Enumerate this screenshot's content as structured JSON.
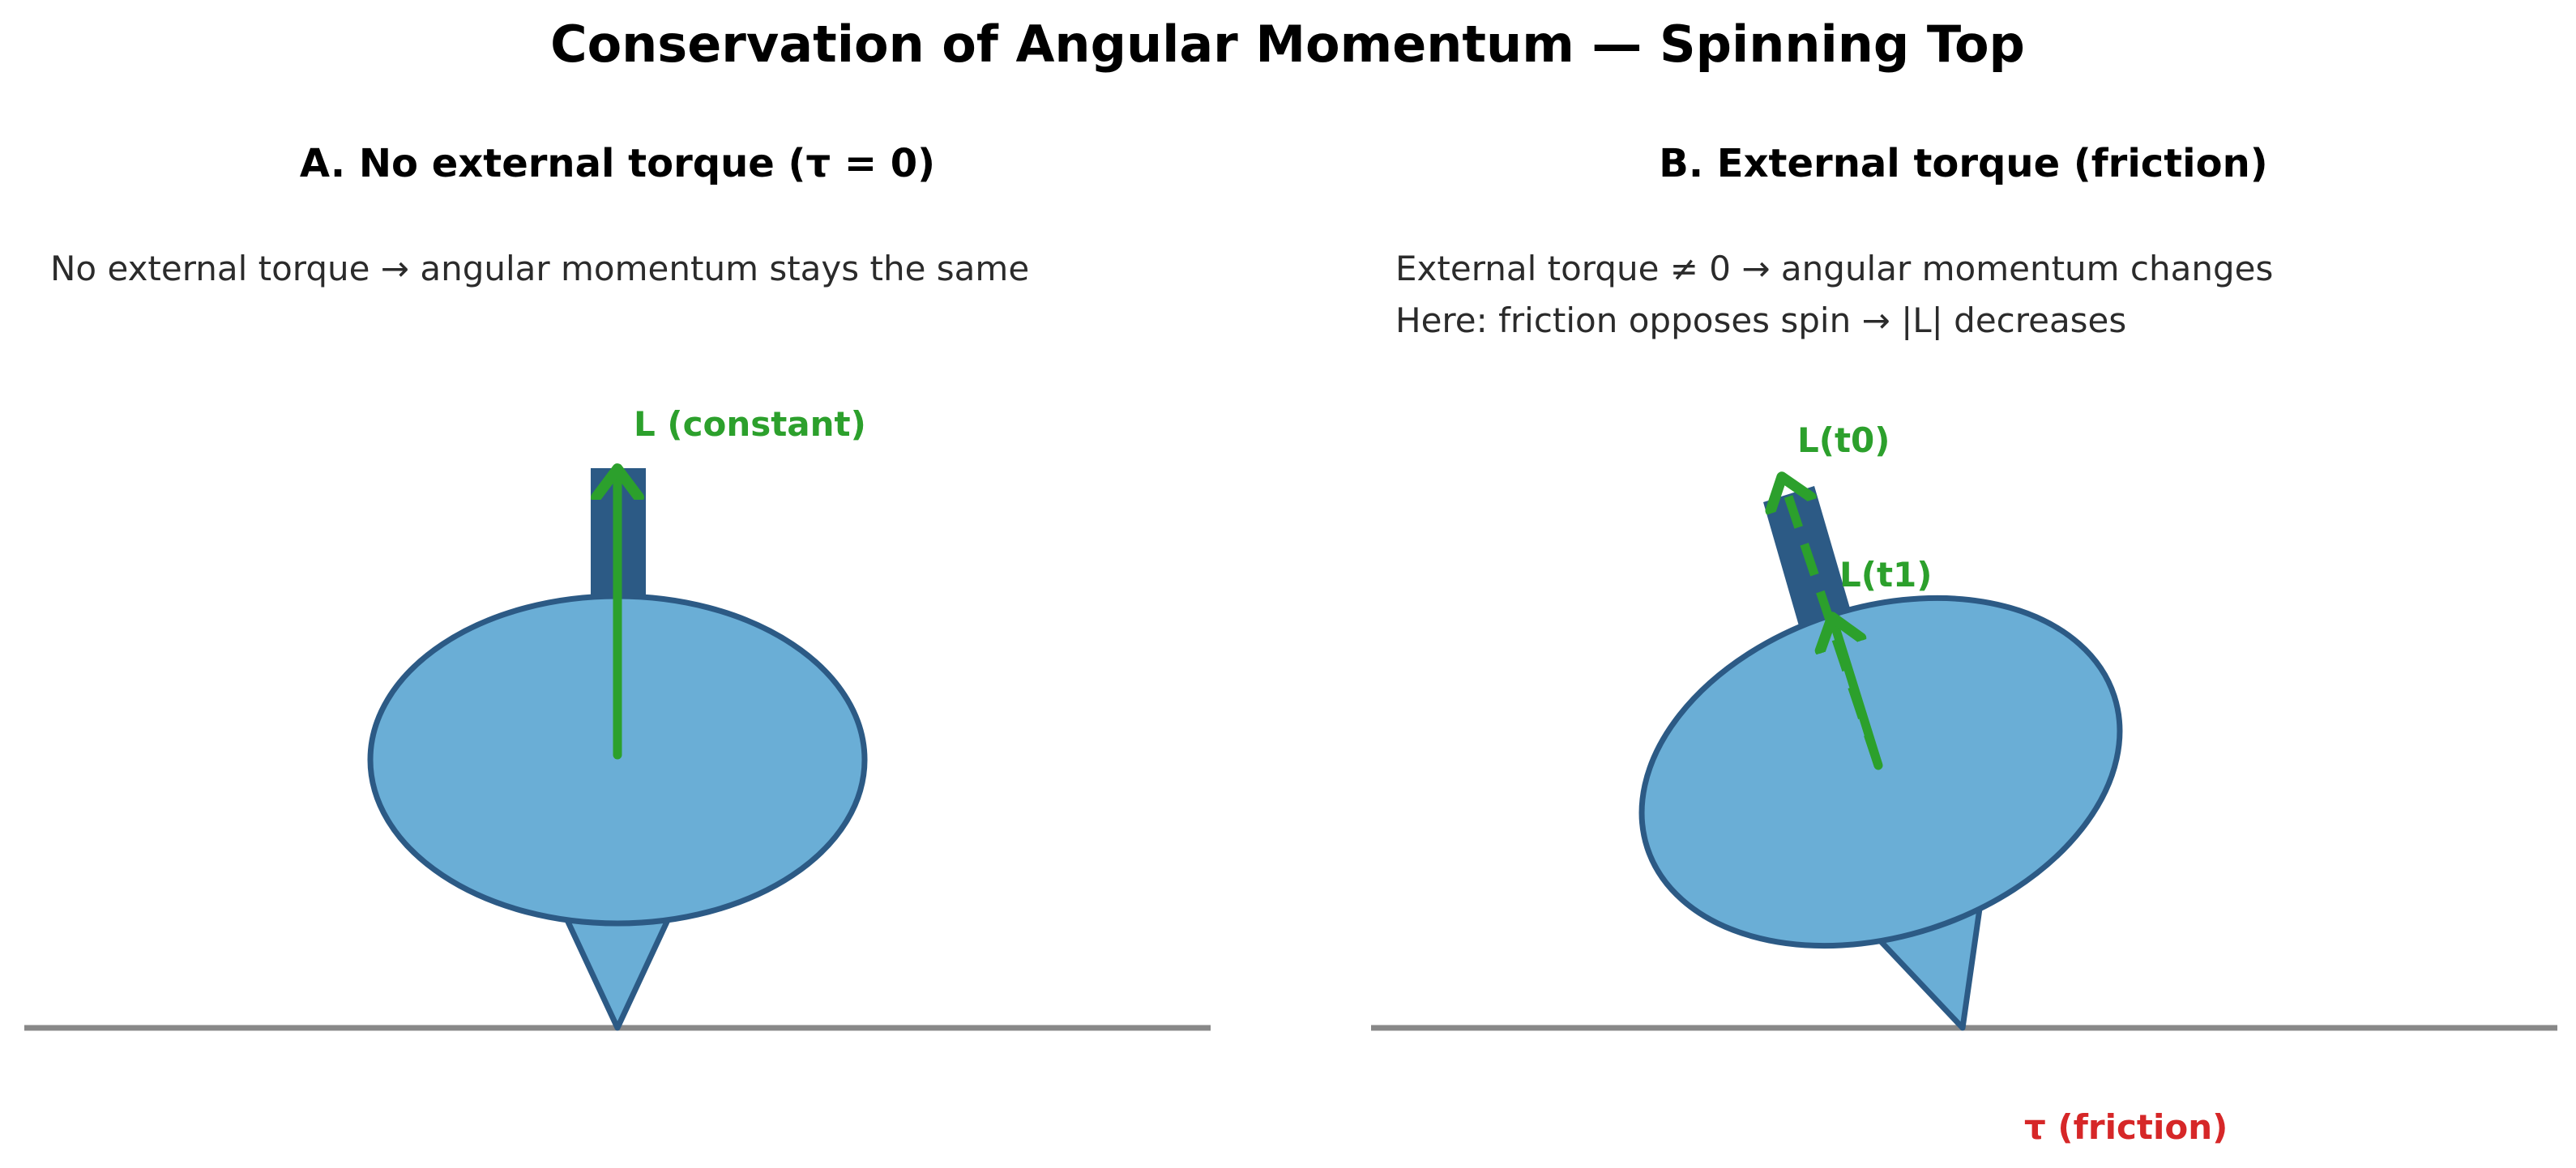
{
  "title": "Conservation of Angular Momentum — Spinning Top",
  "colors": {
    "top_fill": "#6aaed6",
    "top_edge": "#2c5a85",
    "axle": "#2c5a85",
    "vector": "#2ca02c",
    "torque": "#d62728",
    "ground": "#888888",
    "note_text": "#2b2b2b"
  },
  "panel_a": {
    "title": "A. No external torque (τ = 0)",
    "note_1": "No external torque → angular momentum stays the same",
    "vector_label": "L (constant)",
    "tilt_deg": 0
  },
  "panel_b": {
    "title": "B. External torque (friction)",
    "note_1": "External torque ≠ 0 → angular momentum changes",
    "note_2": "Here: friction opposes spin → |L| decreases",
    "vector_label_t0": "L(t0)",
    "vector_label_t1": "L(t1)",
    "torque_label": "τ (friction)",
    "tilt_deg": 18
  }
}
